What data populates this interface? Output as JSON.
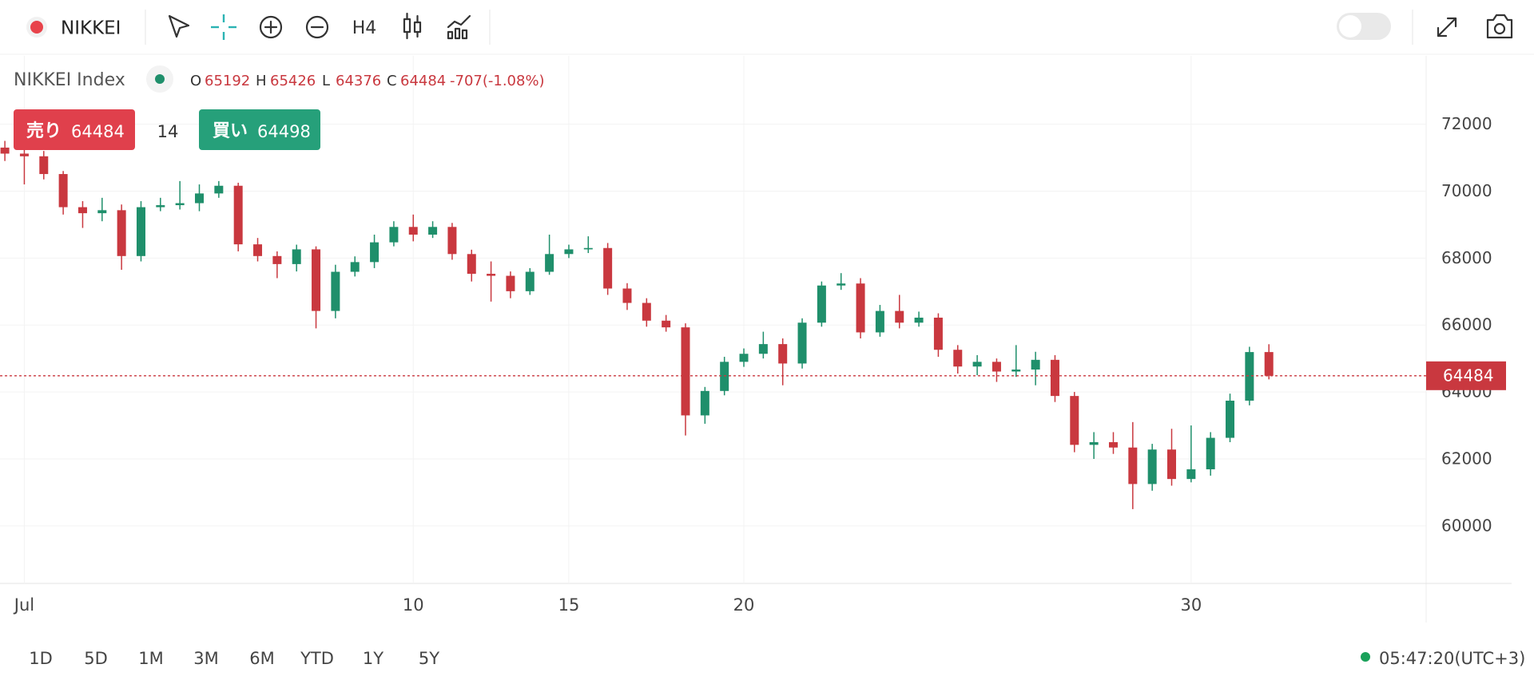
{
  "toolbar": {
    "symbol": "NIKKEI",
    "interval": "H4"
  },
  "legend": {
    "name": "NIKKEI Index",
    "o_label": "O",
    "h_label": "H",
    "l_label": "L",
    "c_label": "C",
    "change": "-707(-1.08%)"
  },
  "trade": {
    "sell_label": "売り",
    "sell_price": "64484",
    "spread": "14",
    "buy_label": "買い",
    "buy_price": "64498"
  },
  "ranges": [
    "1D",
    "5D",
    "1M",
    "3M",
    "6M",
    "YTD",
    "1Y",
    "5Y"
  ],
  "clock": "05:47:20(UTC+3)",
  "chart_data": {
    "type": "candlestick",
    "up_color": "#1f8f6b",
    "down_color": "#c9383f",
    "ylim": [
      58280,
      74040
    ],
    "yticks": [
      60000,
      62000,
      64000,
      66000,
      68000,
      70000,
      72000
    ],
    "grid": true,
    "categories": [
      null,
      "Jul",
      null,
      null,
      null,
      null,
      null,
      null,
      null,
      null,
      null,
      null,
      null,
      null,
      null,
      null,
      null,
      null,
      null,
      null,
      null,
      "10",
      null,
      null,
      null,
      null,
      null,
      null,
      null,
      "15",
      null,
      null,
      null,
      null,
      null,
      null,
      null,
      null,
      "20",
      null,
      null,
      null,
      null,
      null,
      null,
      null,
      null,
      null,
      null,
      null,
      null,
      null,
      null,
      null,
      null,
      null,
      null,
      null,
      null,
      null,
      null,
      "30",
      null,
      null,
      null,
      null
    ],
    "open": [
      71300,
      71120,
      71040,
      70510,
      69520,
      69340,
      69430,
      68060,
      69520,
      69580,
      69640,
      69930,
      70160,
      68410,
      68060,
      67820,
      68260,
      66420,
      67590,
      67880,
      68470,
      68930,
      68700,
      68930,
      68120,
      67530,
      67470,
      67010,
      67590,
      68120,
      68260,
      68300,
      67090,
      66660,
      66130,
      65930,
      63300,
      64030,
      64900,
      65140,
      65430,
      64850,
      66070,
      67180,
      67240,
      65780,
      66420,
      66070,
      66220,
      65260,
      64760,
      64900,
      64610,
      64670,
      64960,
      63880,
      62420,
      62500,
      62340,
      61250,
      62280,
      61400,
      61690,
      62630,
      63740,
      65192
    ],
    "high": [
      71500,
      71350,
      71200,
      70600,
      69700,
      69800,
      69600,
      69700,
      69800,
      70300,
      70200,
      70300,
      70250,
      68600,
      68200,
      68400,
      68350,
      67800,
      68050,
      68700,
      69100,
      69300,
      69100,
      69050,
      68250,
      67900,
      67600,
      67700,
      68700,
      68400,
      68650,
      68450,
      67250,
      66800,
      66300,
      66050,
      64150,
      65050,
      65300,
      65800,
      65600,
      66200,
      67300,
      67550,
      67400,
      66600,
      66900,
      66400,
      66350,
      65400,
      65100,
      65000,
      65400,
      65200,
      65100,
      64000,
      62800,
      62800,
      63100,
      62450,
      62900,
      63000,
      62800,
      63950,
      65350,
      65426
    ],
    "low": [
      70900,
      70200,
      70350,
      69300,
      68900,
      69100,
      67650,
      67900,
      69400,
      69450,
      69400,
      69800,
      68200,
      67900,
      67400,
      67600,
      65900,
      66200,
      67450,
      67700,
      68350,
      68500,
      68600,
      67950,
      67300,
      66700,
      66800,
      66900,
      67500,
      68000,
      68150,
      66900,
      66450,
      65950,
      65800,
      62700,
      63050,
      63900,
      64750,
      65000,
      64200,
      64700,
      65950,
      67050,
      65600,
      65650,
      65900,
      65950,
      65050,
      64550,
      64500,
      64300,
      64450,
      64200,
      63700,
      62200,
      62000,
      62150,
      60500,
      61050,
      61200,
      61300,
      61500,
      62500,
      63600,
      64376
    ],
    "close": [
      71120,
      71040,
      70510,
      69520,
      69340,
      69430,
      68060,
      69520,
      69580,
      69640,
      69930,
      70160,
      68410,
      68060,
      67820,
      68260,
      66420,
      67590,
      67880,
      68470,
      68930,
      68700,
      68930,
      68120,
      67530,
      67470,
      67010,
      67590,
      68120,
      68260,
      68300,
      67090,
      66660,
      66130,
      65930,
      63300,
      64030,
      64900,
      65140,
      65430,
      64850,
      66070,
      67180,
      67240,
      65780,
      66420,
      66070,
      66220,
      65260,
      64760,
      64900,
      64610,
      64670,
      64960,
      63880,
      62420,
      62500,
      62340,
      61250,
      62280,
      61400,
      61690,
      62630,
      63740,
      65192,
      64484
    ]
  }
}
